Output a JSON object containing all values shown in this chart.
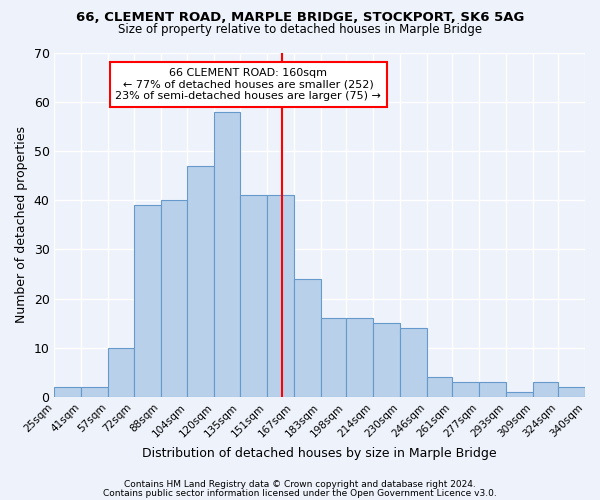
{
  "title": "66, CLEMENT ROAD, MARPLE BRIDGE, STOCKPORT, SK6 5AG",
  "subtitle": "Size of property relative to detached houses in Marple Bridge",
  "xlabel": "Distribution of detached houses by size in Marple Bridge",
  "ylabel": "Number of detached properties",
  "bin_labels": [
    "25sqm",
    "41sqm",
    "57sqm",
    "72sqm",
    "88sqm",
    "104sqm",
    "120sqm",
    "135sqm",
    "151sqm",
    "167sqm",
    "183sqm",
    "198sqm",
    "214sqm",
    "230sqm",
    "246sqm",
    "261sqm",
    "277sqm",
    "293sqm",
    "309sqm",
    "324sqm",
    "340sqm"
  ],
  "bin_edges": [
    25,
    41,
    57,
    72,
    88,
    104,
    120,
    135,
    151,
    167,
    183,
    198,
    214,
    230,
    246,
    261,
    277,
    293,
    309,
    324,
    340
  ],
  "bar_heights": [
    2,
    2,
    10,
    39,
    40,
    47,
    58,
    41,
    41,
    24,
    16,
    16,
    15,
    14,
    4,
    3,
    3,
    1,
    3,
    2
  ],
  "bar_color": "#b8d0ea",
  "bar_edge_color": "#6699cc",
  "vline_x_index": 8.56,
  "vline_color": "red",
  "annotation_title": "66 CLEMENT ROAD: 160sqm",
  "annotation_line1": "← 77% of detached houses are smaller (252)",
  "annotation_line2": "23% of semi-detached houses are larger (75) →",
  "ylim": [
    0,
    70
  ],
  "yticks": [
    0,
    10,
    20,
    30,
    40,
    50,
    60,
    70
  ],
  "footer1": "Contains HM Land Registry data © Crown copyright and database right 2024.",
  "footer2": "Contains public sector information licensed under the Open Government Licence v3.0.",
  "bg_color": "#eef2fb",
  "grid_color": "#ffffff"
}
